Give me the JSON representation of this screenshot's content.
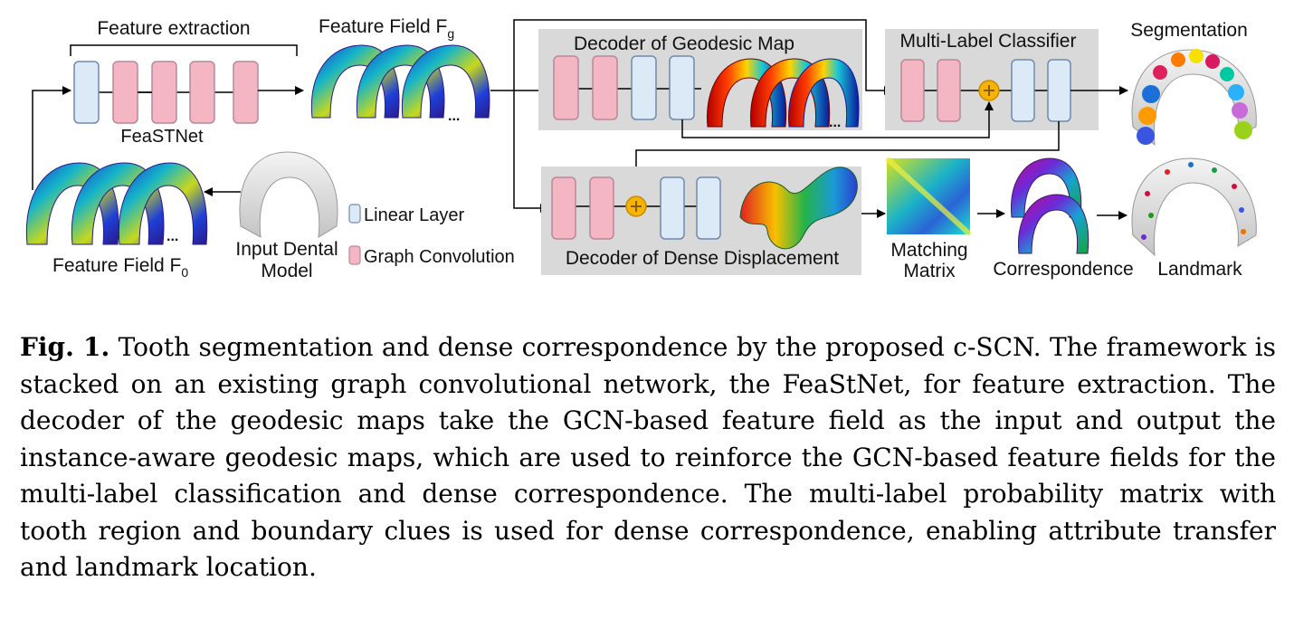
{
  "figure": {
    "feature_extraction_label": "Feature extraction",
    "feastnet_label": "FeaSTNet",
    "feature_field_g_label": "Feature Field F",
    "feature_field_g_sub": "g",
    "feature_field_0_label": "Feature Field F",
    "feature_field_0_sub": "0",
    "input_model_label_line1": "Input Dental",
    "input_model_label_line2": "Model",
    "legend_linear": "Linear Layer",
    "legend_graph_conv": "Graph Convolution",
    "decoder_geodesic_label": "Decoder of Geodesic Map",
    "classifier_label": "Multi-Label Classifier",
    "decoder_dense_label": "Decoder of Dense Displacement",
    "segmentation_label": "Segmentation",
    "matching_label_line1": "Matching",
    "matching_label_line2": "Matrix",
    "correspondence_label": "Correspondence",
    "landmark_label": "Landmark",
    "ellipsis": "...",
    "colors": {
      "linear_layer": "#dceaf7",
      "graph_conv": "#f4b6c2",
      "decoder_panel": "#d9d9d9",
      "adder": "#f5b400"
    }
  },
  "caption": {
    "fig_label": "Fig. 1.",
    "text": "Tooth segmentation and dense correspondence by the proposed c-SCN. The framework is stacked on an existing graph convolutional network, the FeaStNet, for feature extraction. The decoder of the geodesic maps take the GCN-based feature field as the input and output the instance-aware geodesic maps, which are used to reinforce the GCN-based feature fields for the multi-label classification and dense correspondence. The multi-label probability matrix with tooth region and boundary clues is used for dense correspondence, enabling attribute transfer and landmark location."
  }
}
